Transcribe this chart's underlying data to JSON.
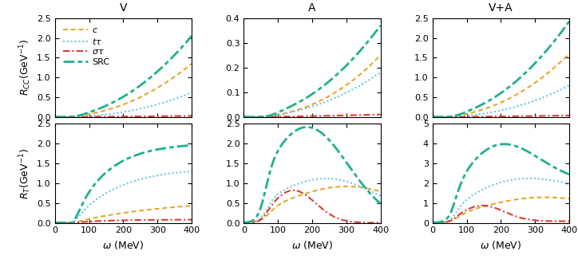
{
  "col_titles": [
    "V",
    "A",
    "V+A"
  ],
  "colors": [
    "#e8a020",
    "#5bbfe8",
    "#d94030",
    "#20b090"
  ],
  "omega_max": 400,
  "ylims": {
    "CC_V": [
      0,
      2.5
    ],
    "CC_A": [
      0,
      0.4
    ],
    "CC_VA": [
      0,
      2.5
    ],
    "T_V": [
      0,
      2.5
    ],
    "T_A": [
      0,
      2.5
    ],
    "T_VA": [
      0,
      5.0
    ]
  }
}
